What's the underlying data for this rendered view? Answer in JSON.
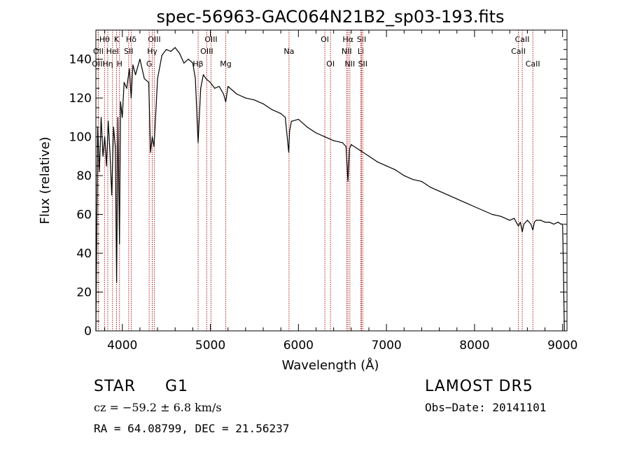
{
  "chart_data": {
    "type": "line",
    "title": "spec-56963-GAC064N21B2_sp03-193.fits",
    "xlabel": "Wavelength (Å)",
    "ylabel": "Flux (relative)",
    "xlim": [
      3700,
      9050
    ],
    "ylim": [
      0,
      155
    ],
    "xticks": [
      4000,
      5000,
      6000,
      7000,
      8000,
      9000
    ],
    "yticks": [
      0,
      20,
      40,
      60,
      80,
      100,
      120,
      140
    ],
    "grid": false,
    "line_color": "#000000",
    "marker_color": "#b22222",
    "series": [
      {
        "x": [
          3700,
          3720,
          3740,
          3760,
          3780,
          3800,
          3820,
          3840,
          3860,
          3880,
          3900,
          3920,
          3935,
          3950,
          3968,
          3980,
          4000,
          4020,
          4050,
          4080,
          4101,
          4120,
          4150,
          4200,
          4250,
          4300,
          4320,
          4340,
          4360,
          4380,
          4400,
          4450,
          4500,
          4550,
          4600,
          4650,
          4700,
          4750,
          4800,
          4830,
          4861,
          4890,
          4920,
          4950,
          5000,
          5050,
          5100,
          5150,
          5175,
          5200,
          5250,
          5300,
          5400,
          5500,
          5600,
          5700,
          5800,
          5850,
          5890,
          5900,
          5920,
          6000,
          6100,
          6200,
          6300,
          6400,
          6500,
          6540,
          6563,
          6580,
          6600,
          6700,
          6800,
          6900,
          7000,
          7100,
          7200,
          7300,
          7400,
          7500,
          7600,
          7700,
          7800,
          7900,
          8000,
          8100,
          8200,
          8300,
          8400,
          8450,
          8498,
          8520,
          8542,
          8560,
          8600,
          8640,
          8662,
          8680,
          8700,
          8750,
          8800,
          8850,
          8900,
          8950,
          8980,
          9000,
          9010,
          9020
        ],
        "y": [
          0,
          105,
          82,
          110,
          90,
          100,
          85,
          108,
          92,
          70,
          105,
          95,
          25,
          110,
          45,
          118,
          110,
          128,
          125,
          135,
          120,
          137,
          132,
          140,
          130,
          128,
          92,
          100,
          95,
          112,
          130,
          142,
          145,
          144,
          146,
          143,
          138,
          140,
          138,
          130,
          97,
          125,
          132,
          130,
          128,
          125,
          126,
          122,
          118,
          126,
          124,
          122,
          120,
          119,
          117,
          114,
          112,
          110,
          92,
          103,
          108,
          109,
          105,
          102,
          100,
          98,
          97,
          95,
          77,
          94,
          96,
          93,
          90,
          87,
          85,
          83,
          80,
          78,
          77,
          74,
          72,
          70,
          68,
          66,
          64,
          62,
          60,
          59,
          57,
          58,
          54,
          56,
          51,
          55,
          57,
          55,
          52,
          56,
          57,
          57,
          56,
          56,
          55,
          56,
          55,
          55,
          30,
          0
        ]
      }
    ],
    "line_markers": [
      {
        "name": "Hθ",
        "wavelength": 3798,
        "row": 0
      },
      {
        "name": "OII",
        "wavelength": 3727,
        "row": 1
      },
      {
        "name": "OIII",
        "wavelength": 3727,
        "row": 2
      },
      {
        "name": "Hη",
        "wavelength": 3835,
        "row": 2
      },
      {
        "name": "HeI",
        "wavelength": 3889,
        "row": 1
      },
      {
        "name": "K",
        "wavelength": 3934,
        "row": 0
      },
      {
        "name": "H",
        "wavelength": 3968,
        "row": 2
      },
      {
        "name": "Hδ",
        "wavelength": 4101,
        "row": 0
      },
      {
        "name": "SII",
        "wavelength": 4072,
        "row": 1
      },
      {
        "name": "OIII",
        "wavelength": 4363,
        "row": 0
      },
      {
        "name": "Hγ",
        "wavelength": 4340,
        "row": 1
      },
      {
        "name": "G",
        "wavelength": 4305,
        "row": 2
      },
      {
        "name": "OIII",
        "wavelength": 5007,
        "row": 0
      },
      {
        "name": "OIII",
        "wavelength": 4959,
        "row": 1
      },
      {
        "name": "Hβ",
        "wavelength": 4861,
        "row": 2
      },
      {
        "name": "Mg",
        "wavelength": 5175,
        "row": 2
      },
      {
        "name": "Na",
        "wavelength": 5893,
        "row": 1
      },
      {
        "name": "OI",
        "wavelength": 6300,
        "row": 0
      },
      {
        "name": "OI",
        "wavelength": 6364,
        "row": 2
      },
      {
        "name": "Hα",
        "wavelength": 6563,
        "row": 0
      },
      {
        "name": "NII",
        "wavelength": 6548,
        "row": 1
      },
      {
        "name": "NII",
        "wavelength": 6584,
        "row": 2
      },
      {
        "name": "SII",
        "wavelength": 6717,
        "row": 0
      },
      {
        "name": "Li",
        "wavelength": 6708,
        "row": 1
      },
      {
        "name": "SII",
        "wavelength": 6731,
        "row": 2
      },
      {
        "name": "CaII",
        "wavelength": 8542,
        "row": 0
      },
      {
        "name": "CaII",
        "wavelength": 8498,
        "row": 1
      },
      {
        "name": "CaII",
        "wavelength": 8662,
        "row": 2
      }
    ]
  },
  "info": {
    "class": "STAR",
    "subclass": "G1",
    "survey": "LAMOST DR5",
    "cz": "cz = −59.2 ± 6.8 km/s",
    "obs_date": "Obs−Date: 20141101",
    "radec": "RA =  64.08799, DEC =  21.56237"
  }
}
